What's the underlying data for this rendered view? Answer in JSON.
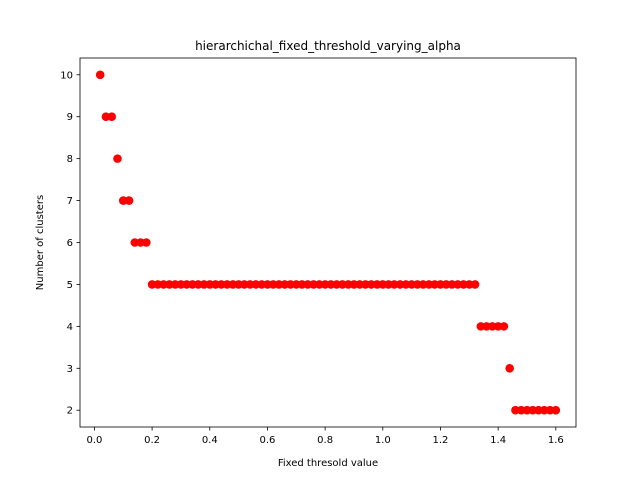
{
  "chart_data": {
    "type": "scatter",
    "title": "hierarchichal_fixed_threshold_varying_alpha",
    "xlabel": "Fixed thresold value",
    "ylabel": "Number of clusters",
    "xlim": [
      -0.05,
      1.67
    ],
    "ylim": [
      1.6,
      10.4
    ],
    "xticks": [
      0.0,
      0.2,
      0.4,
      0.6,
      0.8,
      1.0,
      1.2,
      1.4,
      1.6
    ],
    "xtick_labels": [
      "0.0",
      "0.2",
      "0.4",
      "0.6",
      "0.8",
      "1.0",
      "1.2",
      "1.4",
      "1.6"
    ],
    "yticks": [
      2,
      3,
      4,
      5,
      6,
      7,
      8,
      9,
      10
    ],
    "ytick_labels": [
      "2",
      "3",
      "4",
      "5",
      "6",
      "7",
      "8",
      "9",
      "10"
    ],
    "grid": false,
    "marker_color": "#ff0000",
    "points": [
      {
        "x": 0.02,
        "y": 10
      },
      {
        "x": 0.04,
        "y": 9
      },
      {
        "x": 0.06,
        "y": 9
      },
      {
        "x": 0.08,
        "y": 8
      },
      {
        "x": 0.1,
        "y": 7
      },
      {
        "x": 0.12,
        "y": 7
      },
      {
        "x": 0.14,
        "y": 6
      },
      {
        "x": 0.16,
        "y": 6
      },
      {
        "x": 0.18,
        "y": 6
      },
      {
        "x": 0.2,
        "y": 5
      },
      {
        "x": 0.22,
        "y": 5
      },
      {
        "x": 0.24,
        "y": 5
      },
      {
        "x": 0.26,
        "y": 5
      },
      {
        "x": 0.28,
        "y": 5
      },
      {
        "x": 0.3,
        "y": 5
      },
      {
        "x": 0.32,
        "y": 5
      },
      {
        "x": 0.34,
        "y": 5
      },
      {
        "x": 0.36,
        "y": 5
      },
      {
        "x": 0.38,
        "y": 5
      },
      {
        "x": 0.4,
        "y": 5
      },
      {
        "x": 0.42,
        "y": 5
      },
      {
        "x": 0.44,
        "y": 5
      },
      {
        "x": 0.46,
        "y": 5
      },
      {
        "x": 0.48,
        "y": 5
      },
      {
        "x": 0.5,
        "y": 5
      },
      {
        "x": 0.52,
        "y": 5
      },
      {
        "x": 0.54,
        "y": 5
      },
      {
        "x": 0.56,
        "y": 5
      },
      {
        "x": 0.58,
        "y": 5
      },
      {
        "x": 0.6,
        "y": 5
      },
      {
        "x": 0.62,
        "y": 5
      },
      {
        "x": 0.64,
        "y": 5
      },
      {
        "x": 0.66,
        "y": 5
      },
      {
        "x": 0.68,
        "y": 5
      },
      {
        "x": 0.7,
        "y": 5
      },
      {
        "x": 0.72,
        "y": 5
      },
      {
        "x": 0.74,
        "y": 5
      },
      {
        "x": 0.76,
        "y": 5
      },
      {
        "x": 0.78,
        "y": 5
      },
      {
        "x": 0.8,
        "y": 5
      },
      {
        "x": 0.82,
        "y": 5
      },
      {
        "x": 0.84,
        "y": 5
      },
      {
        "x": 0.86,
        "y": 5
      },
      {
        "x": 0.88,
        "y": 5
      },
      {
        "x": 0.9,
        "y": 5
      },
      {
        "x": 0.92,
        "y": 5
      },
      {
        "x": 0.94,
        "y": 5
      },
      {
        "x": 0.96,
        "y": 5
      },
      {
        "x": 0.98,
        "y": 5
      },
      {
        "x": 1.0,
        "y": 5
      },
      {
        "x": 1.02,
        "y": 5
      },
      {
        "x": 1.04,
        "y": 5
      },
      {
        "x": 1.06,
        "y": 5
      },
      {
        "x": 1.08,
        "y": 5
      },
      {
        "x": 1.1,
        "y": 5
      },
      {
        "x": 1.12,
        "y": 5
      },
      {
        "x": 1.14,
        "y": 5
      },
      {
        "x": 1.16,
        "y": 5
      },
      {
        "x": 1.18,
        "y": 5
      },
      {
        "x": 1.2,
        "y": 5
      },
      {
        "x": 1.22,
        "y": 5
      },
      {
        "x": 1.24,
        "y": 5
      },
      {
        "x": 1.26,
        "y": 5
      },
      {
        "x": 1.28,
        "y": 5
      },
      {
        "x": 1.3,
        "y": 5
      },
      {
        "x": 1.32,
        "y": 5
      },
      {
        "x": 1.34,
        "y": 4
      },
      {
        "x": 1.36,
        "y": 4
      },
      {
        "x": 1.38,
        "y": 4
      },
      {
        "x": 1.4,
        "y": 4
      },
      {
        "x": 1.42,
        "y": 4
      },
      {
        "x": 1.44,
        "y": 3
      },
      {
        "x": 1.46,
        "y": 2
      },
      {
        "x": 1.48,
        "y": 2
      },
      {
        "x": 1.5,
        "y": 2
      },
      {
        "x": 1.52,
        "y": 2
      },
      {
        "x": 1.54,
        "y": 2
      },
      {
        "x": 1.56,
        "y": 2
      },
      {
        "x": 1.58,
        "y": 2
      },
      {
        "x": 1.6,
        "y": 2
      }
    ]
  }
}
